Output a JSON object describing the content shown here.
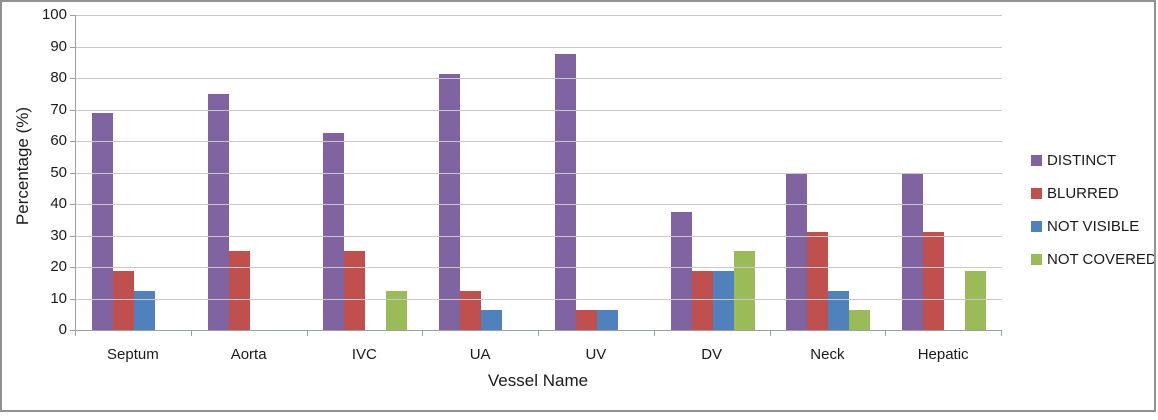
{
  "chart_data": {
    "type": "bar",
    "title": "",
    "xlabel": "Vessel Name",
    "ylabel": "Percentage (%)",
    "ylim": [
      0,
      100
    ],
    "yticks": [
      0,
      10,
      20,
      30,
      40,
      50,
      60,
      70,
      80,
      90,
      100
    ],
    "grid": true,
    "legend_position": "right",
    "categories": [
      "Septum",
      "Aorta",
      "IVC",
      "UA",
      "UV",
      "DV",
      "Neck",
      "Hepatic"
    ],
    "series": [
      {
        "name": "DISTINCT",
        "color": "#8064A2",
        "values": [
          68.75,
          75,
          62.5,
          81.25,
          87.5,
          37.5,
          50,
          50
        ]
      },
      {
        "name": "BLURRED",
        "color": "#C0504D",
        "values": [
          18.75,
          25,
          25,
          12.5,
          6.25,
          18.75,
          31.25,
          31.25
        ]
      },
      {
        "name": "NOT VISIBLE",
        "color": "#4F81BD",
        "values": [
          12.5,
          0,
          0,
          6.25,
          6.25,
          18.75,
          12.5,
          0
        ]
      },
      {
        "name": "NOT COVERED",
        "color": "#9BBB59",
        "values": [
          0,
          0,
          12.5,
          0,
          0,
          25,
          6.25,
          18.75
        ]
      }
    ],
    "colors": {
      "gridline": "#c9c9c9",
      "axis": "#9aa0a5",
      "frame_border": "#8f9193"
    }
  }
}
